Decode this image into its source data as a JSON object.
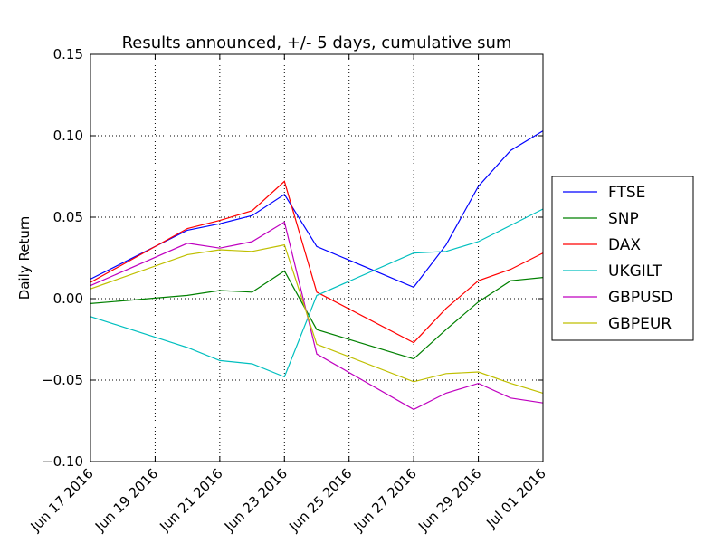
{
  "chart_data": {
    "type": "line",
    "title": "Results announced, +/- 5 days, cumulative sum",
    "xlabel": "",
    "ylabel": "Daily Return",
    "ylim": [
      -0.1,
      0.15
    ],
    "xlim": [
      "2016-06-17",
      "2016-07-01"
    ],
    "yticks": [
      -0.1,
      -0.05,
      0.0,
      0.05,
      0.1,
      0.15
    ],
    "ytick_labels": [
      "−0.10",
      "−0.05",
      "0.00",
      "0.05",
      "0.10",
      "0.15"
    ],
    "xticks": [
      "2016-06-17",
      "2016-06-19",
      "2016-06-21",
      "2016-06-23",
      "2016-06-25",
      "2016-06-27",
      "2016-06-29",
      "2016-07-01"
    ],
    "xtick_labels": [
      "Jun 17 2016",
      "Jun 19 2016",
      "Jun 21 2016",
      "Jun 23 2016",
      "Jun 25 2016",
      "Jun 27 2016",
      "Jun 29 2016",
      "Jul 01 2016"
    ],
    "grid": true,
    "legend_position": "right, outside plot",
    "x": [
      "2016-06-17",
      "2016-06-20",
      "2016-06-21",
      "2016-06-22",
      "2016-06-23",
      "2016-06-24",
      "2016-06-27",
      "2016-06-28",
      "2016-06-29",
      "2016-06-30",
      "2016-07-01"
    ],
    "series": [
      {
        "name": "FTSE",
        "color": "#0000ff",
        "values": [
          0.012,
          0.042,
          0.046,
          0.051,
          0.064,
          0.032,
          0.007,
          0.033,
          0.069,
          0.091,
          0.103
        ]
      },
      {
        "name": "SNP",
        "color": "#008000",
        "values": [
          -0.003,
          0.002,
          0.005,
          0.004,
          0.017,
          -0.019,
          -0.037,
          -0.019,
          -0.002,
          0.011,
          0.013
        ]
      },
      {
        "name": "DAX",
        "color": "#ff0000",
        "values": [
          0.01,
          0.043,
          0.048,
          0.054,
          0.072,
          0.004,
          -0.027,
          -0.006,
          0.011,
          0.018,
          0.028
        ]
      },
      {
        "name": "UKGILT",
        "color": "#00bfbf",
        "values": [
          -0.011,
          -0.03,
          -0.038,
          -0.04,
          -0.048,
          0.002,
          0.028,
          0.029,
          0.035,
          0.045,
          0.055
        ]
      },
      {
        "name": "GBPUSD",
        "color": "#bf00bf",
        "values": [
          0.008,
          0.034,
          0.031,
          0.035,
          0.047,
          -0.034,
          -0.068,
          -0.058,
          -0.052,
          -0.061,
          -0.064
        ]
      },
      {
        "name": "GBPEUR",
        "color": "#bfbf00",
        "values": [
          0.006,
          0.027,
          0.03,
          0.029,
          0.033,
          -0.028,
          -0.051,
          -0.046,
          -0.045,
          -0.052,
          -0.058
        ]
      }
    ]
  }
}
